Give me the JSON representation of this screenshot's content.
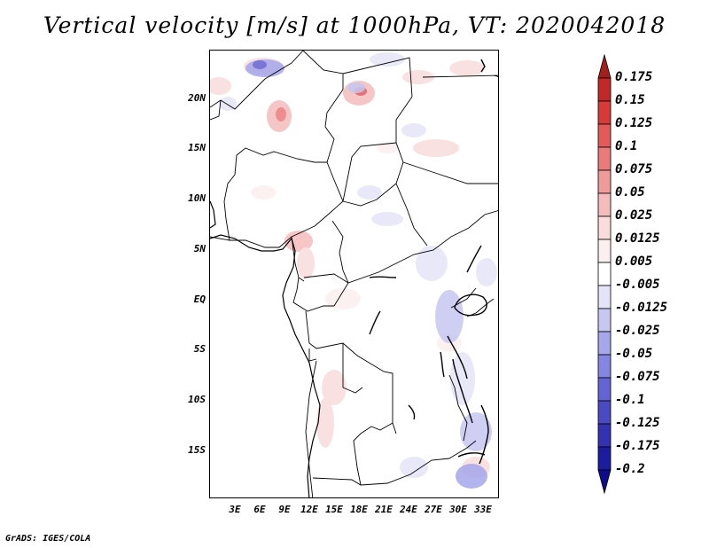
{
  "title": "Vertical velocity [m/s] at 1000hPa, VT: 2020042018",
  "footer": "GrADS: IGES/COLA",
  "map": {
    "lat_labels": [
      "20N",
      "15N",
      "10N",
      "5N",
      "EQ",
      "5S",
      "10S",
      "15S"
    ],
    "lon_labels": [
      "3E",
      "6E",
      "9E",
      "12E",
      "15E",
      "18E",
      "21E",
      "24E",
      "27E",
      "30E",
      "33E"
    ]
  },
  "colorbar": {
    "labels": [
      "0.175",
      "0.15",
      "0.125",
      "0.1",
      "0.075",
      "0.05",
      "0.025",
      "0.0125",
      "0.005",
      "-0.005",
      "-0.0125",
      "-0.025",
      "-0.05",
      "-0.075",
      "-0.1",
      "-0.125",
      "-0.175",
      "-0.2"
    ],
    "colors": [
      "#a51e1e",
      "#c22828",
      "#d83a3a",
      "#e45a5a",
      "#eb7a7a",
      "#f09b9b",
      "#f5bcbc",
      "#f9dcdc",
      "#fcefef",
      "#ffffff",
      "#e4e4f8",
      "#c7c7f2",
      "#a6a6ec",
      "#8585e2",
      "#6464d4",
      "#4a4ac4",
      "#3232b2",
      "#1c1ca0",
      "#0c0c8c"
    ]
  }
}
